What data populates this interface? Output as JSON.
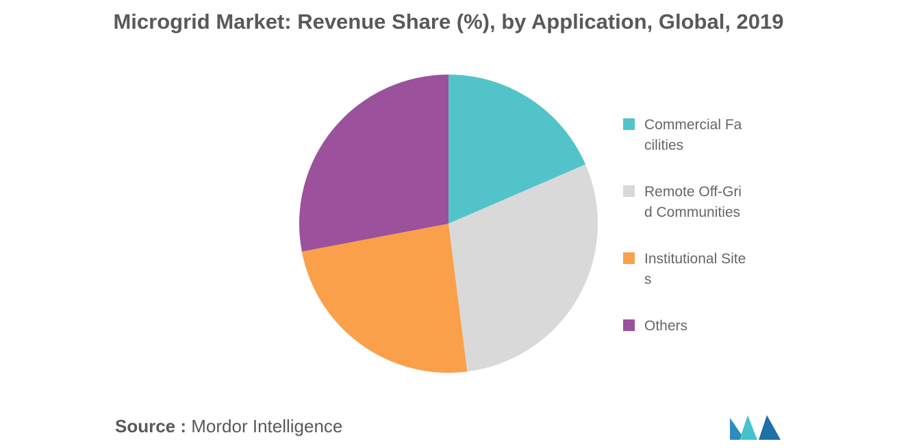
{
  "title": "Microgrid Market: Revenue Share (%), by Application, Global, 2019",
  "source": {
    "label": "Source :",
    "value": "Mordor Intelligence"
  },
  "chart_data": {
    "type": "pie",
    "title": "Microgrid Market: Revenue Share (%), by Application, Global, 2019",
    "start_angle_deg": 0,
    "direction": "clockwise",
    "legend_position": "right",
    "slices": [
      {
        "label": "Commercial Facilities",
        "value": 18.5,
        "color": "#52c4c9"
      },
      {
        "label": "Remote Off-Grid Communities",
        "value": 29.5,
        "color": "#d9d9d9"
      },
      {
        "label": "Institutional Sites",
        "value": 24.0,
        "color": "#faa04a"
      },
      {
        "label": "Others",
        "value": 28.0,
        "color": "#9b519c"
      }
    ]
  },
  "legend": [
    {
      "text": "Commercial Facilities",
      "color": "#52c4c9"
    },
    {
      "text": "Remote Off-Grid Communities",
      "color": "#d9d9d9"
    },
    {
      "text": "Institutional Sites",
      "color": "#faa04a"
    },
    {
      "text": "Others",
      "color": "#9b519c"
    }
  ],
  "logo": {
    "colors": [
      "#2e8bc0",
      "#46c2cb",
      "#1f6fa8"
    ]
  }
}
